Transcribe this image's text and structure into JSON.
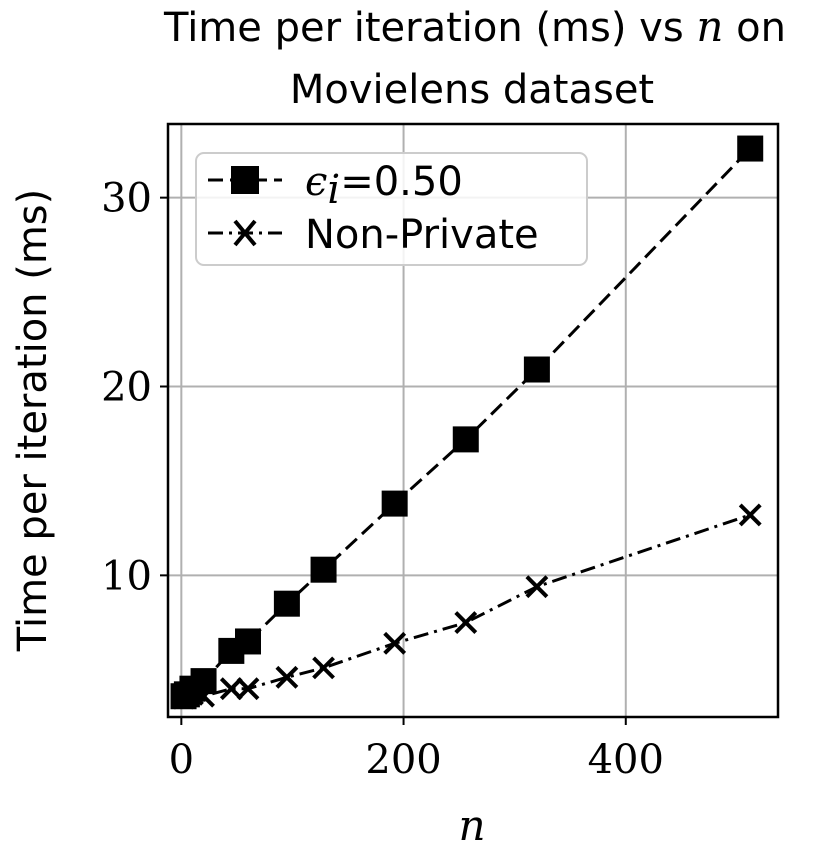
{
  "chart_data": {
    "type": "line",
    "title": {
      "line1_before": "Time per iteration (ms) vs ",
      "line1_var": "n",
      "line1_after": " on",
      "line2": "Movielens dataset"
    },
    "xlabel": "n",
    "ylabel": "Time per iteration (ms)",
    "xlim": [
      -12,
      537
    ],
    "ylim": [
      2.5,
      33.9
    ],
    "xticks": [
      0,
      200,
      400
    ],
    "xtick_labels": [
      "0",
      "200",
      "400"
    ],
    "yticks": [
      10,
      20,
      30
    ],
    "ytick_labels": [
      "10",
      "20",
      "30"
    ],
    "grid": true,
    "legend_position": "upper-left",
    "series": [
      {
        "name": "=0.50",
        "name_symbol": "ϵ",
        "name_sub": "i",
        "marker": "square",
        "linestyle": "dashed",
        "color": "#000000",
        "x": [
          2,
          5,
          10,
          20,
          45,
          60,
          95,
          128,
          192,
          256,
          320,
          512
        ],
        "y": [
          3.6,
          3.7,
          4.0,
          4.4,
          6.0,
          6.5,
          8.5,
          10.3,
          13.8,
          17.2,
          20.9,
          32.6
        ]
      },
      {
        "name": "Non-Private",
        "marker": "x",
        "linestyle": "dashdot",
        "color": "#000000",
        "x": [
          2,
          5,
          10,
          20,
          45,
          60,
          95,
          128,
          192,
          256,
          320,
          512
        ],
        "y": [
          3.5,
          3.6,
          3.7,
          3.6,
          4.0,
          4.0,
          4.6,
          5.1,
          6.4,
          7.5,
          9.4,
          13.2
        ]
      }
    ]
  }
}
